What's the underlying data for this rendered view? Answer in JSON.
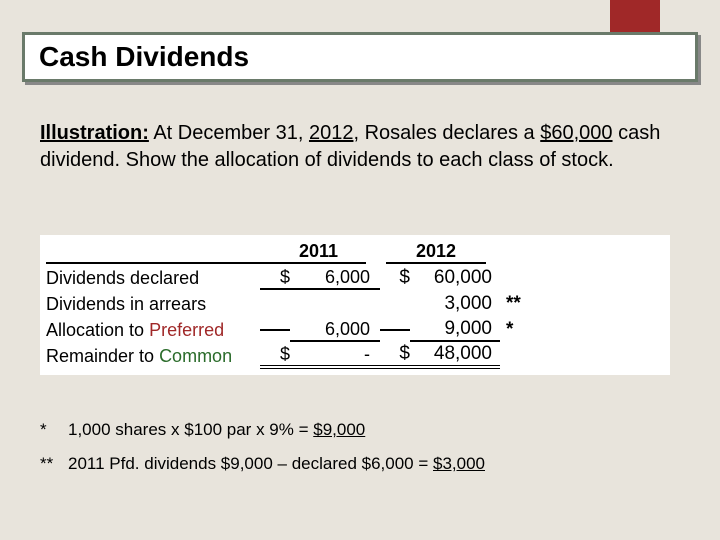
{
  "accent_color": "#a02828",
  "title": "Cash Dividends",
  "illustration": {
    "label": "Illustration:",
    "text_a": " At December 31, ",
    "year": "2012",
    "text_b": ", Rosales declares a ",
    "amount": "$60,000",
    "text_c": " cash dividend.  Show the allocation of dividends to each class of stock."
  },
  "table": {
    "year1_header": "2011",
    "year2_header": "2012",
    "rows": [
      {
        "label_a": "Dividends declared",
        "cur1": "$",
        "val1": "6,000",
        "cur2": "$",
        "val2": "60,000",
        "note": ""
      },
      {
        "label_a": "Dividends in arrears",
        "cur1": "",
        "val1": "",
        "cur2": "",
        "val2": "3,000",
        "note": "**"
      },
      {
        "label_a": "Allocation to ",
        "pref": "Preferred",
        "cur1": "",
        "val1": "6,000",
        "cur2": "",
        "val2": "9,000",
        "note": "*"
      },
      {
        "label_a": "Remainder to ",
        "comm": "Common",
        "cur1": "$",
        "val1": "-",
        "cur2": "$",
        "val2": "48,000",
        "note": ""
      }
    ]
  },
  "footnotes": [
    {
      "mark": "*",
      "text_a": "1,000 shares x $100 par x 9% = ",
      "uline": "$9,000"
    },
    {
      "mark": "**",
      "text_a": "2011 Pfd. dividends $9,000 – declared $6,000 = ",
      "uline": "$3,000"
    }
  ]
}
